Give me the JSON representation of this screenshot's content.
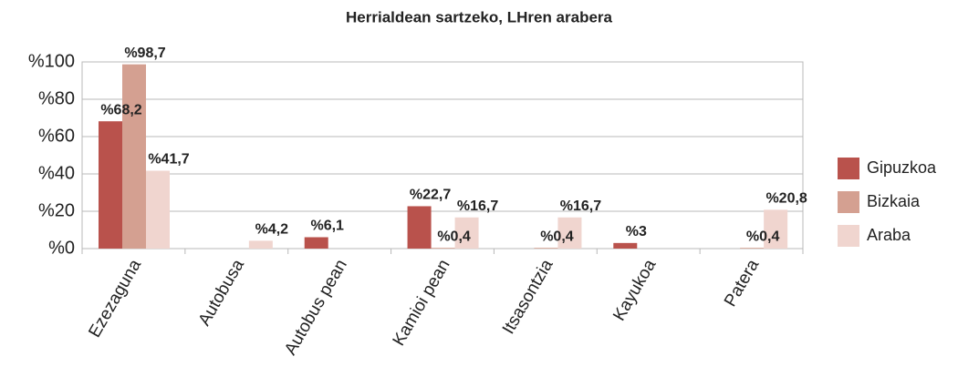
{
  "chart_data": {
    "type": "bar",
    "title": "Herrialdean sartzeko, LHren arabera",
    "categories": [
      "Ezezaguna",
      "Autobusa",
      "Autobus pean",
      "Kamioi pean",
      "Itsasontzia",
      "Kayukoa",
      "Patera"
    ],
    "series": [
      {
        "name": "Gipuzkoa",
        "color": "#b9524c",
        "values": [
          68.2,
          null,
          6.1,
          22.7,
          null,
          3,
          null
        ],
        "value_labels": [
          "%68,2",
          null,
          "%6,1",
          "%22,7",
          null,
          "%3",
          null
        ]
      },
      {
        "name": "Bizkaia",
        "color": "#d4a091",
        "values": [
          98.7,
          null,
          null,
          0.4,
          0.4,
          null,
          0.4
        ],
        "value_labels": [
          "%98,7",
          null,
          null,
          "%0,4",
          "%0,4",
          null,
          "%0,4"
        ]
      },
      {
        "name": "Araba",
        "color": "#f0d5cf",
        "values": [
          41.7,
          4.2,
          null,
          16.7,
          16.7,
          null,
          20.8
        ],
        "value_labels": [
          "%41,7",
          "%4,2",
          null,
          "%16,7",
          "%16,7",
          null,
          "%20,8"
        ]
      }
    ],
    "ylim": [
      0,
      100
    ],
    "yticks": [
      {
        "value": 0,
        "label": "%0"
      },
      {
        "value": 20,
        "label": "%20"
      },
      {
        "value": 40,
        "label": "%40"
      },
      {
        "value": 60,
        "label": "%60"
      },
      {
        "value": 80,
        "label": "%80"
      },
      {
        "value": 100,
        "label": "%100"
      }
    ],
    "grid": true,
    "legend": "right"
  }
}
